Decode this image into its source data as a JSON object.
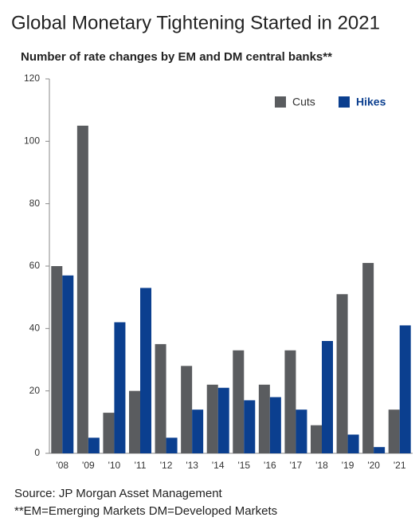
{
  "chart_data": {
    "type": "bar",
    "title": "Global Monetary Tightening Started in 2021",
    "subtitle": "Number of rate changes by EM and DM central banks**",
    "categories": [
      "'08",
      "'09",
      "'10",
      "'11",
      "'12",
      "'13",
      "'14",
      "'15",
      "'16",
      "'17",
      "'18",
      "'19",
      "'20",
      "'21"
    ],
    "series": [
      {
        "name": "Cuts",
        "color": "#5a5c5f",
        "values": [
          60,
          105,
          13,
          20,
          35,
          28,
          22,
          33,
          22,
          33,
          9,
          51,
          61,
          14
        ]
      },
      {
        "name": "Hikes",
        "color": "#0b3f8f",
        "values": [
          57,
          5,
          42,
          53,
          5,
          14,
          21,
          17,
          18,
          14,
          36,
          6,
          2,
          41
        ]
      }
    ],
    "ylim": [
      0,
      120
    ],
    "yticks": [
      0,
      20,
      40,
      60,
      80,
      100,
      120
    ],
    "legend": "top-right",
    "source": "Source: JP Morgan Asset Management",
    "note": "**EM=Emerging Markets DM=Developed Markets"
  }
}
